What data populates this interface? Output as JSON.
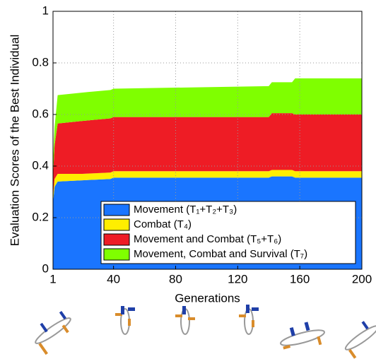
{
  "chart_data": {
    "type": "stacked-area",
    "xlabel": "Generations",
    "ylabel": "Evaluation Scores of the Best Individual",
    "x": [
      1,
      2,
      4,
      20,
      38,
      40,
      140,
      142,
      155,
      157,
      200
    ],
    "series": [
      {
        "name": "Movement (T₁+T₂+T₃)",
        "color": "#1a75ff",
        "values": [
          0.26,
          0.32,
          0.34,
          0.345,
          0.35,
          0.355,
          0.355,
          0.36,
          0.36,
          0.355,
          0.355
        ]
      },
      {
        "name": "Combat (T₄)",
        "color": "#ffee00",
        "values": [
          0.02,
          0.03,
          0.03,
          0.025,
          0.025,
          0.025,
          0.025,
          0.025,
          0.025,
          0.025,
          0.025
        ]
      },
      {
        "name": "Movement and Combat (T₅+T₆)",
        "color": "#ee1c25",
        "values": [
          0.08,
          0.13,
          0.195,
          0.205,
          0.21,
          0.21,
          0.21,
          0.22,
          0.22,
          0.22,
          0.22
        ]
      },
      {
        "name": "Movement, Combat and Survival (T₇)",
        "color": "#7fff00",
        "values": [
          0.06,
          0.07,
          0.11,
          0.11,
          0.11,
          0.11,
          0.12,
          0.12,
          0.12,
          0.14,
          0.14
        ]
      }
    ],
    "xlim": [
      1,
      200
    ],
    "xticks": [
      1,
      40,
      80,
      120,
      160,
      200
    ],
    "ylim": [
      0,
      1
    ],
    "yticks": [
      0,
      0.2,
      0.4,
      0.6,
      0.8,
      1
    ],
    "grid": true,
    "legend": "lower right"
  }
}
